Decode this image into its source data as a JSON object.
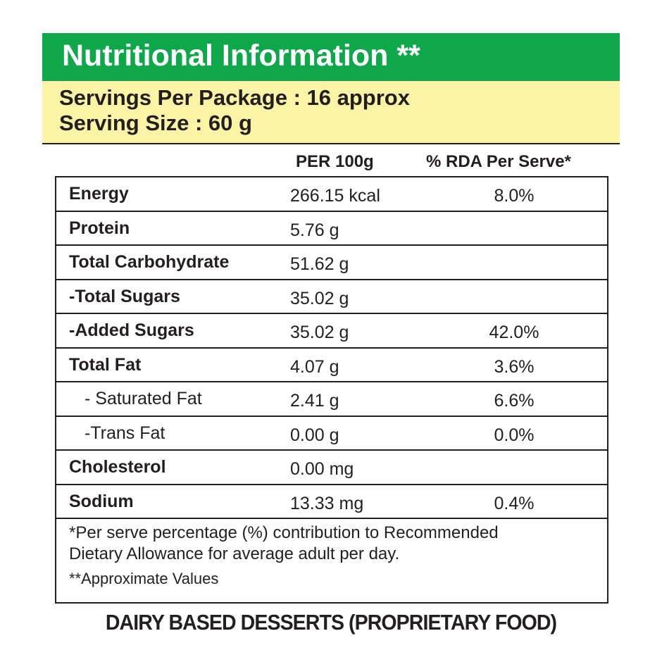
{
  "header": {
    "title": "Nutritional Information **",
    "servings_per_package": "Servings Per Package : 16 approx",
    "serving_size": "Serving Size : 60 g"
  },
  "table": {
    "columns": [
      "PER 100g",
      "% RDA Per Serve*"
    ],
    "rows": [
      {
        "label": "Energy",
        "per_100g": "266.15 kcal",
        "rda": "8.0%"
      },
      {
        "label": "Protein",
        "per_100g": "5.76 g"
      },
      {
        "label": "Total Carbohydrate",
        "per_100g": "51.62 g"
      },
      {
        "label": "-Total Sugars",
        "per_100g": "35.02 g"
      },
      {
        "label": "-Added Sugars",
        "per_100g": "35.02 g",
        "rda": "42.0%"
      },
      {
        "label": "Total Fat",
        "per_100g": "4.07 g",
        "rda": "3.6%"
      },
      {
        "label": "- Saturated Fat",
        "per_100g": "2.41 g",
        "rda": "6.6%"
      },
      {
        "label": "-Trans Fat",
        "per_100g": "0.00 g",
        "rda": "0.0%"
      },
      {
        "label": "Cholesterol",
        "per_100g": "0.00 mg"
      },
      {
        "label": "Sodium",
        "per_100g": "13.33 mg",
        "rda": "0.4%"
      }
    ]
  },
  "footnotes": {
    "rda_note": [
      "*Per serve percentage (%) contribution to Recommended",
      "Dietary Allowance for average adult per day."
    ],
    "approx_note": "**Approximate Values"
  },
  "product": "DAIRY BASED DESSERTS (PROPRIETARY FOOD)"
}
